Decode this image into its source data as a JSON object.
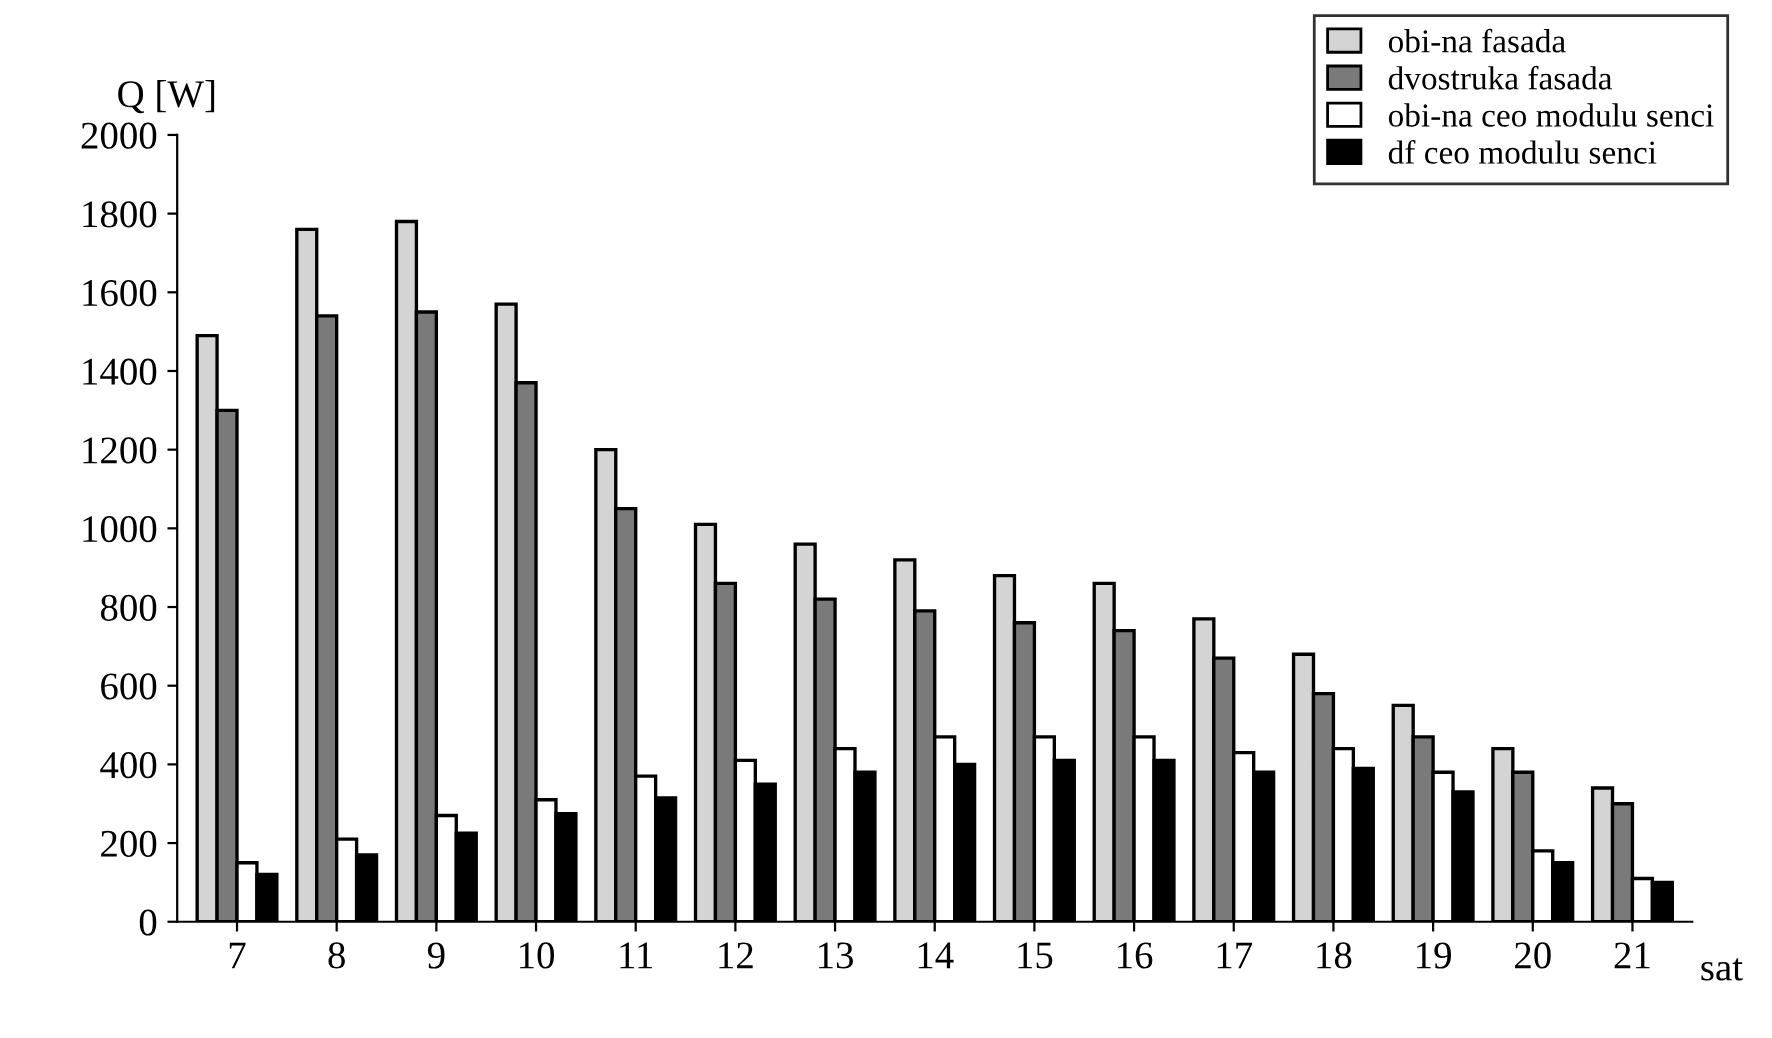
{
  "chart_data": {
    "type": "bar",
    "ylabel": "Q [W]",
    "xlabel": "sat",
    "categories": [
      "7",
      "8",
      "9",
      "10",
      "11",
      "12",
      "13",
      "14",
      "15",
      "16",
      "17",
      "18",
      "19",
      "20",
      "21"
    ],
    "series": [
      {
        "name": "obi-na fasada",
        "color": "#d4d4d4",
        "values": [
          1490,
          1760,
          1780,
          1570,
          1200,
          1010,
          960,
          920,
          880,
          860,
          770,
          680,
          550,
          440,
          340
        ]
      },
      {
        "name": "dvostruka fasada",
        "color": "#7a7a7a",
        "values": [
          1300,
          1540,
          1550,
          1370,
          1050,
          860,
          820,
          790,
          760,
          740,
          670,
          580,
          470,
          380,
          300
        ]
      },
      {
        "name": "obi-na ceo modulu senci",
        "color": "#ffffff",
        "values": [
          150,
          210,
          270,
          310,
          370,
          410,
          440,
          470,
          470,
          470,
          430,
          440,
          380,
          180,
          110
        ]
      },
      {
        "name": "df ceo modulu senci",
        "color": "#000000",
        "values": [
          120,
          170,
          225,
          275,
          315,
          350,
          380,
          400,
          410,
          410,
          380,
          390,
          330,
          150,
          100
        ]
      }
    ],
    "ylim": [
      0,
      2000
    ],
    "yticks": [
      0,
      200,
      400,
      600,
      800,
      1000,
      1200,
      1400,
      1600,
      1800,
      2000
    ],
    "grid": false,
    "legend": "top right"
  }
}
